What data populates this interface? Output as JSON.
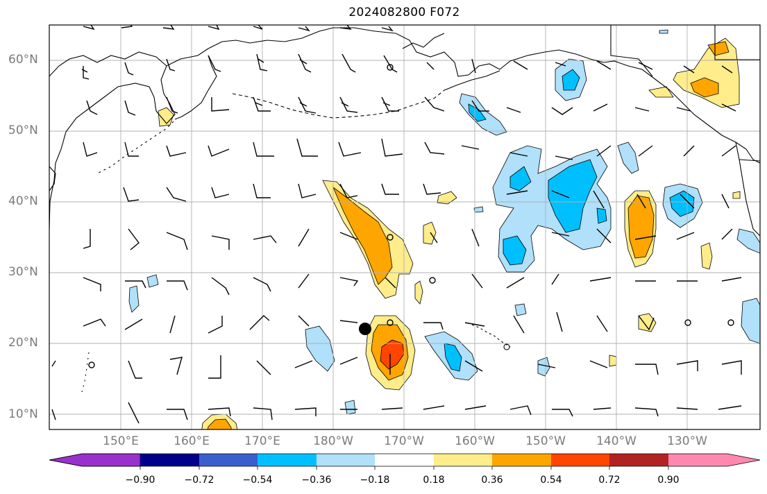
{
  "title": "2024082800 F072",
  "map": {
    "latitude_labels": [
      "60°N",
      "50°N",
      "40°N",
      "30°N",
      "20°N",
      "10°N"
    ],
    "longitude_labels": [
      "150°E",
      "160°E",
      "170°E",
      "180°W",
      "170°W",
      "160°W",
      "150°W",
      "140°W",
      "130°W"
    ],
    "marker": "storm-center-dot"
  },
  "colorbar": {
    "labels": [
      "−0.90",
      "−0.72",
      "−0.54",
      "−0.36",
      "−0.18",
      "0.18",
      "0.36",
      "0.54",
      "0.72",
      "0.90"
    ],
    "colors": [
      "#9932cc",
      "#00008b",
      "#3a5fcd",
      "#00bfff",
      "#b0e0fa",
      "#ffffff",
      "#ffec8b",
      "#ffa500",
      "#ff4500",
      "#b22222",
      "#ff88b0"
    ]
  }
}
